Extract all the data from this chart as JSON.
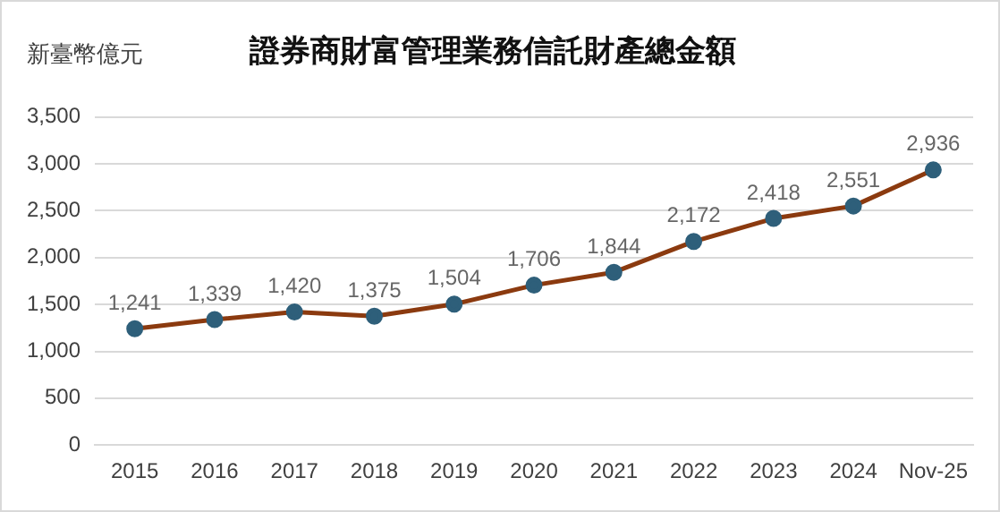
{
  "chart_data": {
    "type": "line",
    "title": "證券商財富管理業務信託財產總金額",
    "ylabel": "新臺幣億元",
    "categories": [
      "2015",
      "2016",
      "2017",
      "2018",
      "2019",
      "2020",
      "2021",
      "2022",
      "2023",
      "2024",
      "Nov-25"
    ],
    "series": [
      {
        "color": "#8b3a0f",
        "colors": [
          "#2e5f7a",
          "#2e5f7a",
          "#2e5f7a",
          "#2e5f7a",
          "#2e5f7a",
          "#2e5f7a",
          "#2e5f7a",
          "#2e5f7a",
          "#2e5f7a",
          "#2e5f7a",
          "#2e5f7a"
        ],
        "values": [
          1241,
          1339,
          1420,
          1375,
          1504,
          1706,
          1844,
          2172,
          2418,
          2551,
          2936
        ],
        "value_labels": [
          "1,241",
          "1,339",
          "1,420",
          "1,375",
          "1,504",
          "1,706",
          "1,844",
          "2,172",
          "2,418",
          "2,551",
          "2,936"
        ]
      }
    ],
    "ylim": [
      0,
      3500
    ],
    "yticks": [
      0,
      500,
      {
        "value": 1000,
        "label": "1,000"
      },
      {
        "value": 1500,
        "label": "1,500"
      },
      {
        "value": 2000,
        "label": "2,000"
      },
      {
        "value": 2500,
        "label": "2,500"
      },
      {
        "value": 3000,
        "label": "3,000"
      },
      {
        "value": 3500,
        "label": "3,500"
      }
    ],
    "grid": "y",
    "legend": false,
    "marker": "circle",
    "line_style": "solid"
  }
}
